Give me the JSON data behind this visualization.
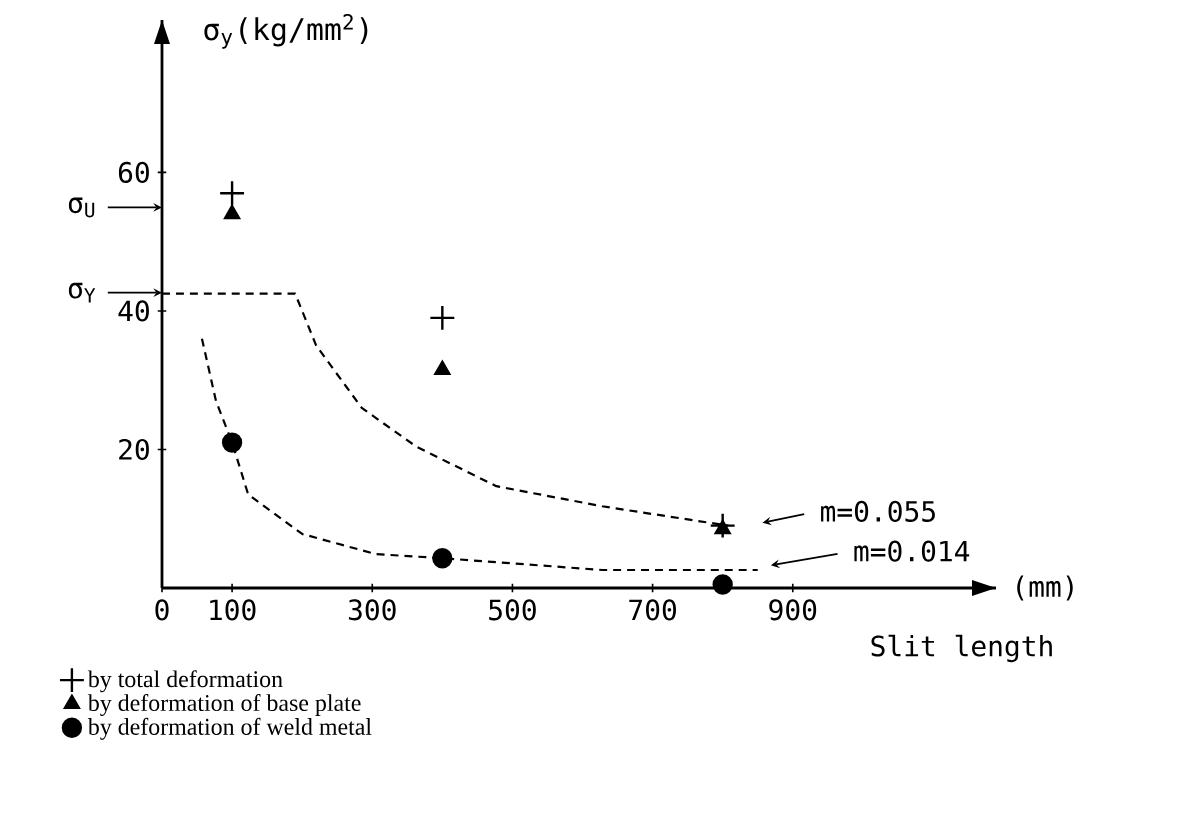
{
  "chart_data": {
    "type": "scatter",
    "ylabel": "σ$_{y}$(kg/mm$^{2}$)",
    "xlabel": "Slit length",
    "xlim": [
      0,
      1190
    ],
    "ylim": [
      0,
      82
    ],
    "xticks": [
      0,
      100,
      300,
      500,
      700,
      900
    ],
    "yticks": [
      20,
      40,
      60
    ],
    "legend": "bottom left",
    "series": [
      {
        "name": "by total deformation",
        "type": "scatter",
        "marker": "cross",
        "color": "#000000",
        "x": [
          100,
          400,
          800
        ],
        "values": [
          57,
          39,
          9
        ]
      },
      {
        "name": "by deformation of base plate",
        "type": "scatter",
        "marker": "triangle",
        "color": "#000000",
        "x": [
          100,
          400,
          800
        ],
        "values": [
          54,
          31.5,
          8.5
        ]
      },
      {
        "name": "by deformation of weld metal",
        "type": "scatter",
        "marker": "circle",
        "color": "#000000",
        "x": [
          100,
          400,
          800
        ],
        "values": [
          21,
          4.3,
          0.5
        ]
      },
      {
        "type": "line",
        "line_style": "dashed",
        "color": "#000000",
        "x": [
          0,
          190,
          220,
          285,
          363,
          477,
          628,
          808
        ],
        "values": [
          42.5,
          42.5,
          35,
          26,
          20.4,
          14.7,
          11.8,
          9
        ]
      },
      {
        "type": "line",
        "line_style": "dashed",
        "color": "#000000",
        "x": [
          57,
          77,
          100,
          123,
          200,
          305,
          400,
          628,
          850
        ],
        "values": [
          36,
          27,
          21,
          13.5,
          7.8,
          4.9,
          4.3,
          2.6,
          2.6
        ]
      }
    ],
    "annotations": [
      "σ$_{U}$",
      "σ$_{Y}$",
      "(mm)",
      "m=0.055",
      "m=0.014"
    ]
  }
}
